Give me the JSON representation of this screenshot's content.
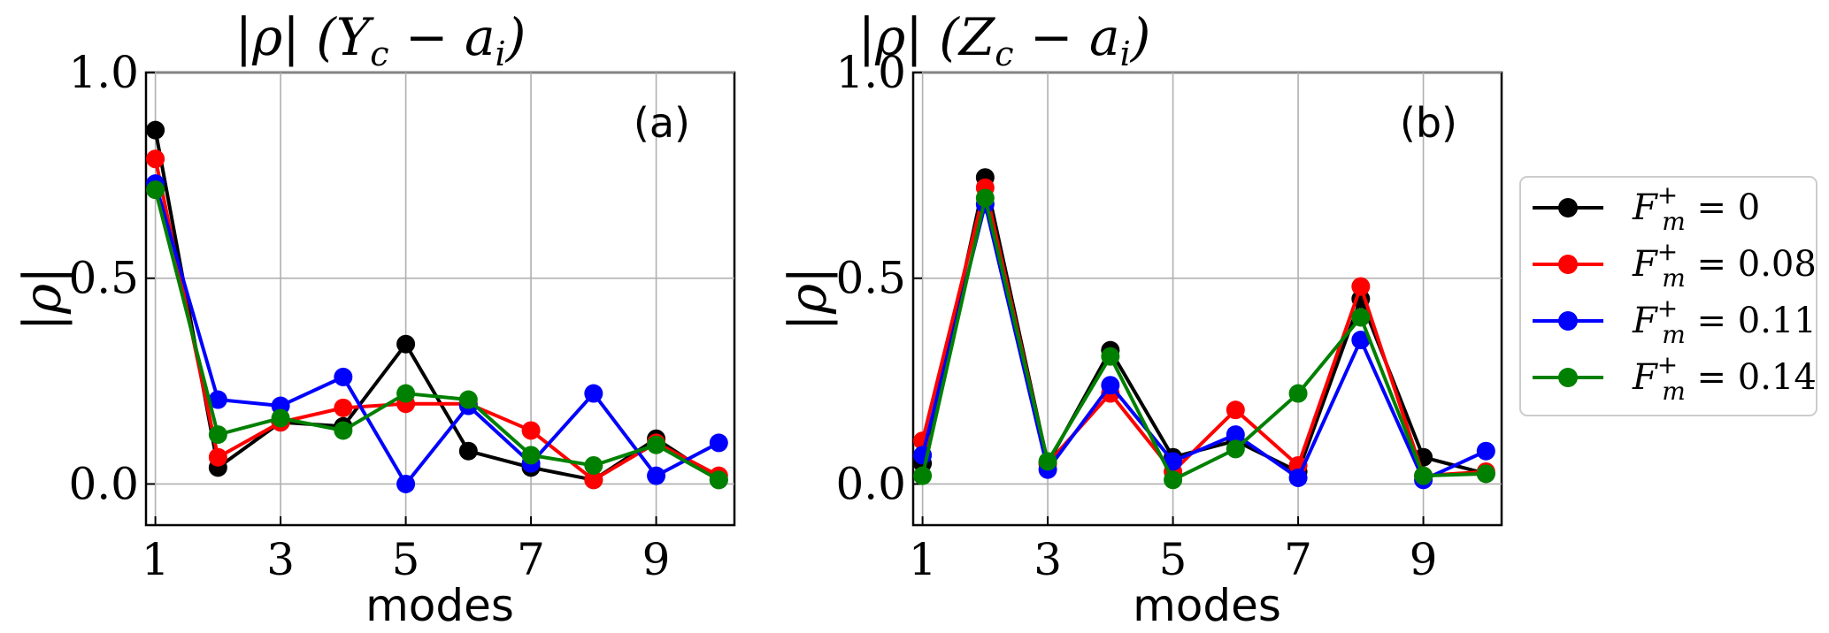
{
  "chart_data": [
    {
      "type": "line",
      "title": "|ρ| (Y_c − a_i)",
      "panel_label": "(a)",
      "xlabel": "modes",
      "ylabel": "|ρ|",
      "xlim": [
        0.85,
        10.25
      ],
      "ylim": [
        -0.1,
        1.0
      ],
      "x": [
        1,
        2,
        3,
        4,
        5,
        6,
        7,
        8,
        9,
        10
      ],
      "xticks": [
        "1",
        "3",
        "5",
        "7",
        "9"
      ],
      "yticks": [
        "0.0",
        "0.5",
        "1.0"
      ],
      "grid": true,
      "series": [
        {
          "name": "F_m^+ = 0",
          "color": "#000000",
          "values": [
            0.86,
            0.04,
            0.15,
            0.14,
            0.34,
            0.08,
            0.04,
            0.01,
            0.11,
            0.01
          ]
        },
        {
          "name": "F_m^+ = 0.08",
          "color": "#ff0000",
          "values": [
            0.79,
            0.065,
            0.15,
            0.185,
            0.195,
            0.195,
            0.13,
            0.01,
            0.1,
            0.02
          ]
        },
        {
          "name": "F_m^+ = 0.11",
          "color": "#0000ff",
          "values": [
            0.73,
            0.205,
            0.19,
            0.26,
            0.0,
            0.19,
            0.05,
            0.22,
            0.02,
            0.1
          ]
        },
        {
          "name": "F_m^+ = 0.14",
          "color": "#008000",
          "values": [
            0.715,
            0.12,
            0.16,
            0.13,
            0.22,
            0.205,
            0.07,
            0.045,
            0.095,
            0.01
          ]
        }
      ]
    },
    {
      "type": "line",
      "title": "|ρ| (Z_c − a_i)",
      "panel_label": "(b)",
      "xlabel": "modes",
      "ylabel": "|ρ|",
      "xlim": [
        0.85,
        10.25
      ],
      "ylim": [
        -0.1,
        1.0
      ],
      "x": [
        1,
        2,
        3,
        4,
        5,
        6,
        7,
        8,
        9,
        10
      ],
      "xticks": [
        "1",
        "3",
        "5",
        "7",
        "9"
      ],
      "yticks": [
        "0.0",
        "0.5",
        "1.0"
      ],
      "grid": true,
      "series": [
        {
          "name": "F_m^+ = 0",
          "color": "#000000",
          "values": [
            0.05,
            0.745,
            0.05,
            0.325,
            0.065,
            0.105,
            0.03,
            0.45,
            0.065,
            0.025
          ]
        },
        {
          "name": "F_m^+ = 0.08",
          "color": "#ff0000",
          "values": [
            0.105,
            0.72,
            0.05,
            0.22,
            0.03,
            0.18,
            0.045,
            0.48,
            0.02,
            0.03
          ]
        },
        {
          "name": "F_m^+ = 0.11",
          "color": "#0000ff",
          "values": [
            0.07,
            0.68,
            0.035,
            0.24,
            0.055,
            0.12,
            0.015,
            0.35,
            0.01,
            0.08
          ]
        },
        {
          "name": "F_m^+ = 0.14",
          "color": "#008000",
          "values": [
            0.02,
            0.695,
            0.055,
            0.31,
            0.01,
            0.085,
            0.22,
            0.405,
            0.02,
            0.025
          ]
        }
      ]
    }
  ],
  "legend": {
    "placement": "right",
    "entries": [
      {
        "var": "F",
        "sub": "m",
        "sup": "+",
        "eq": " = 0",
        "color": "#000000"
      },
      {
        "var": "F",
        "sub": "m",
        "sup": "+",
        "eq": " = 0.08",
        "color": "#ff0000"
      },
      {
        "var": "F",
        "sub": "m",
        "sup": "+",
        "eq": " = 0.11",
        "color": "#0000ff"
      },
      {
        "var": "F",
        "sub": "m",
        "sup": "+",
        "eq": " = 0.14",
        "color": "#008000"
      }
    ]
  }
}
